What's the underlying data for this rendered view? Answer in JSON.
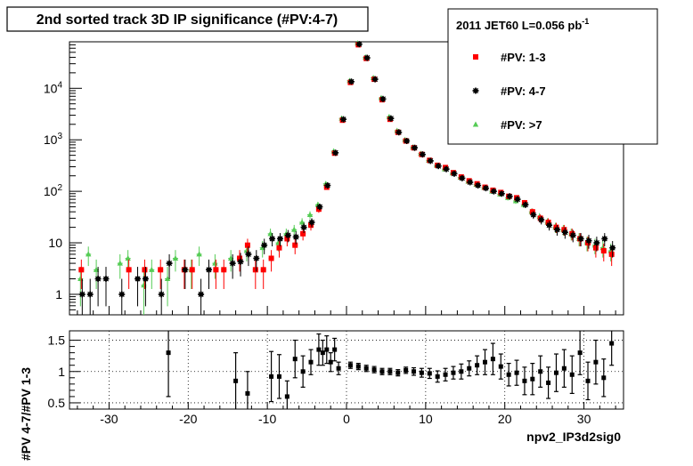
{
  "title": "2nd sorted track 3D IP significance (#PV:4-7)",
  "legend": {
    "header_main": "2011 JET60 L=0.056 pb",
    "header_sup": "-1",
    "entries": [
      {
        "label": "#PV: 1-3",
        "color": "#ff0000",
        "marker": "square"
      },
      {
        "label": "#PV: 4-7",
        "color": "#000000",
        "marker": "star"
      },
      {
        "label": "#PV: >7",
        "color": "#55cc55",
        "marker": "triangle"
      }
    ]
  },
  "xlabel": "npv2_IP3d2sig0",
  "ratio_ylabel": "#PV 4-7/#PV 1-3",
  "top_yticks": [
    {
      "value": 1,
      "label": "1"
    },
    {
      "value": 10,
      "label": "10"
    },
    {
      "value": 100,
      "label": "10",
      "sup": "2"
    },
    {
      "value": 1000,
      "label": "10",
      "sup": "3"
    },
    {
      "value": 10000,
      "label": "10",
      "sup": "4"
    }
  ],
  "bottom_yticks": [
    {
      "value": 0.5,
      "label": "0.5"
    },
    {
      "value": 1,
      "label": "1"
    },
    {
      "value": 1.5,
      "label": "1.5"
    }
  ],
  "xticks": [
    -30,
    -20,
    -10,
    0,
    10,
    20,
    30
  ],
  "chart_data": [
    {
      "type": "scatter",
      "title": "2nd sorted track 3D IP significance (#PV:4-7)",
      "xlabel": "",
      "ylabel": "",
      "xlim": [
        -35,
        35
      ],
      "ylim": [
        0.4,
        80000
      ],
      "yscale": "log",
      "grid": false,
      "legend_position": "top-right",
      "series": [
        {
          "name": "#PV: 1-3",
          "points": [
            [
              -33.5,
              3
            ],
            [
              -27.5,
              3
            ],
            [
              -25.5,
              3
            ],
            [
              -23.5,
              3
            ],
            [
              -20.5,
              3
            ],
            [
              -19.5,
              3
            ],
            [
              -16.5,
              3
            ],
            [
              -15.5,
              3
            ],
            [
              -13.5,
              5
            ],
            [
              -12.5,
              9
            ],
            [
              -11.5,
              3
            ],
            [
              -10.5,
              3
            ],
            [
              -9.5,
              5
            ],
            [
              -8.5,
              8
            ],
            [
              -7.5,
              12
            ],
            [
              -6.5,
              9
            ],
            [
              -5.5,
              15
            ],
            [
              -4.5,
              22
            ],
            [
              -3.5,
              45
            ],
            [
              -2.5,
              120
            ],
            [
              -1.5,
              550
            ],
            [
              -0.5,
              2400
            ],
            [
              0.5,
              13000
            ],
            [
              1.5,
              70000
            ],
            [
              2.5,
              38000
            ],
            [
              3.5,
              15000
            ],
            [
              4.5,
              6000
            ],
            [
              5.5,
              2500
            ],
            [
              6.5,
              1400
            ],
            [
              7.5,
              950
            ],
            [
              8.5,
              700
            ],
            [
              9.5,
              520
            ],
            [
              10.5,
              400
            ],
            [
              11.5,
              320
            ],
            [
              12.5,
              290
            ],
            [
              13.5,
              230
            ],
            [
              14.5,
              190
            ],
            [
              15.5,
              160
            ],
            [
              16.5,
              140
            ],
            [
              17.5,
              120
            ],
            [
              18.5,
              105
            ],
            [
              19.5,
              95
            ],
            [
              20.5,
              80
            ],
            [
              21.5,
              75
            ],
            [
              22.5,
              60
            ],
            [
              23.5,
              40
            ],
            [
              24.5,
              30
            ],
            [
              25.5,
              25
            ],
            [
              26.5,
              20
            ],
            [
              27.5,
              18
            ],
            [
              28.5,
              15
            ],
            [
              29.5,
              12
            ],
            [
              30.5,
              10
            ],
            [
              31.5,
              8
            ],
            [
              32.5,
              7
            ],
            [
              33.5,
              6
            ]
          ]
        },
        {
          "name": "#PV: 4-7",
          "points": [
            [
              -33.5,
              1.0
            ],
            [
              -32.5,
              1.0
            ],
            [
              -31.5,
              2.0
            ],
            [
              -30.5,
              2.0
            ],
            [
              -28.5,
              1.0
            ],
            [
              -26.5,
              2.0
            ],
            [
              -25.5,
              2.0
            ],
            [
              -23.5,
              1.0
            ],
            [
              -22.5,
              4.0
            ],
            [
              -20.5,
              3.0
            ],
            [
              -18.5,
              1.0
            ],
            [
              -17.5,
              3.0
            ],
            [
              -14.5,
              4.0
            ],
            [
              -13.5,
              4.3
            ],
            [
              -12.5,
              6.0
            ],
            [
              -11.5,
              5.0
            ],
            [
              -10.5,
              9.0
            ],
            [
              -9.5,
              12.0
            ],
            [
              -8.5,
              12.0
            ],
            [
              -7.5,
              14.0
            ],
            [
              -6.5,
              13.0
            ],
            [
              -5.5,
              20.0
            ],
            [
              -4.5,
              25.0
            ],
            [
              -3.5,
              50.0
            ],
            [
              -2.5,
              130.0
            ],
            [
              -1.5,
              560.0
            ],
            [
              -0.5,
              2500.0
            ],
            [
              0.5,
              13500.0
            ],
            [
              1.5,
              72000.0
            ],
            [
              2.5,
              39000.0
            ],
            [
              3.5,
              15000.0
            ],
            [
              4.5,
              6200.0
            ],
            [
              5.5,
              2600.0
            ],
            [
              6.5,
              1400.0
            ],
            [
              7.5,
              950.0
            ],
            [
              8.5,
              700.0
            ],
            [
              9.5,
              520.0
            ],
            [
              10.5,
              390.0
            ],
            [
              11.5,
              310.0
            ],
            [
              12.5,
              270.0
            ],
            [
              13.5,
              220.0
            ],
            [
              14.5,
              180.0
            ],
            [
              15.5,
              150.0
            ],
            [
              16.5,
              130.0
            ],
            [
              17.5,
              115.0
            ],
            [
              18.5,
              100.0
            ],
            [
              19.5,
              90.0
            ],
            [
              20.5,
              80.0
            ],
            [
              21.5,
              70.0
            ],
            [
              22.5,
              55.0
            ],
            [
              23.5,
              35.0
            ],
            [
              24.5,
              28.0
            ],
            [
              25.5,
              22.0
            ],
            [
              26.5,
              18.0
            ],
            [
              27.5,
              16.0
            ],
            [
              28.5,
              14.0
            ],
            [
              29.5,
              12.0
            ],
            [
              30.5,
              11.0
            ],
            [
              31.5,
              10.0
            ],
            [
              32.5,
              12.0
            ],
            [
              33.5,
              8.0
            ]
          ]
        },
        {
          "name": "#PV: >7",
          "points": [
            [
              -33.5,
              2.0
            ],
            [
              -32.5,
              6.0
            ],
            [
              -31.5,
              3.0
            ],
            [
              -28.5,
              4.0
            ],
            [
              -27.5,
              5.0
            ],
            [
              -25.5,
              1.5
            ],
            [
              -24.5,
              3.0
            ],
            [
              -22.5,
              2.0
            ],
            [
              -21.5,
              5.0
            ],
            [
              -19.5,
              3.0
            ],
            [
              -18.5,
              6.0
            ],
            [
              -16.5,
              4.0
            ],
            [
              -14.5,
              5.0
            ],
            [
              -12.5,
              7.0
            ],
            [
              -10.5,
              8.0
            ],
            [
              -9.5,
              15.0
            ],
            [
              -8.5,
              10.0
            ],
            [
              -7.5,
              15.0
            ],
            [
              -6.5,
              18.0
            ],
            [
              -5.5,
              25.0
            ],
            [
              -4.5,
              35.0
            ],
            [
              -3.5,
              55.0
            ],
            [
              -2.5,
              140.0
            ],
            [
              -1.5,
              600.0
            ],
            [
              -0.5,
              2600.0
            ],
            [
              0.5,
              14000.0
            ],
            [
              1.5,
              75000.0
            ],
            [
              2.5,
              40000.0
            ],
            [
              3.5,
              16000.0
            ],
            [
              4.5,
              6500.0
            ],
            [
              5.5,
              2800.0
            ],
            [
              6.5,
              1500.0
            ],
            [
              7.5,
              1000.0
            ],
            [
              8.5,
              720.0
            ],
            [
              9.5,
              540.0
            ],
            [
              10.5,
              400.0
            ],
            [
              11.5,
              320.0
            ],
            [
              12.5,
              270.0
            ],
            [
              13.5,
              225.0
            ],
            [
              14.5,
              185.0
            ],
            [
              15.5,
              155.0
            ],
            [
              16.5,
              135.0
            ],
            [
              17.5,
              118.0
            ],
            [
              18.5,
              100.0
            ],
            [
              19.5,
              88.0
            ],
            [
              20.5,
              75.0
            ],
            [
              21.5,
              65.0
            ],
            [
              22.5,
              55.0
            ],
            [
              23.5,
              40.0
            ],
            [
              24.5,
              32.0
            ],
            [
              25.5,
              25.0
            ],
            [
              26.5,
              20.0
            ],
            [
              27.5,
              18.0
            ],
            [
              28.5,
              15.0
            ],
            [
              29.5,
              12.0
            ],
            [
              30.5,
              10.0
            ],
            [
              31.5,
              9.0
            ],
            [
              32.5,
              8.0
            ],
            [
              33.5,
              7.0
            ]
          ]
        }
      ]
    },
    {
      "type": "scatter",
      "title": "",
      "xlabel": "npv2_IP3d2sig0",
      "ylabel": "#PV 4-7/#PV 1-3",
      "xlim": [
        -35,
        35
      ],
      "ylim": [
        0.4,
        1.65
      ],
      "grid": true,
      "series": [
        {
          "name": "",
          "points": [
            [
              -22.5,
              1.3,
              0.7
            ],
            [
              -14.0,
              0.85,
              0.45
            ],
            [
              -12.5,
              0.65,
              0.35
            ],
            [
              -9.5,
              0.92,
              0.4
            ],
            [
              -8.5,
              0.92,
              0.35
            ],
            [
              -7.5,
              0.6,
              0.25
            ],
            [
              -6.5,
              1.2,
              0.3
            ],
            [
              -5.5,
              1.0,
              0.25
            ],
            [
              -4.5,
              1.15,
              0.2
            ],
            [
              -3.5,
              1.35,
              0.25
            ],
            [
              -3.0,
              1.3,
              0.2
            ],
            [
              -2.5,
              1.35,
              0.22
            ],
            [
              -2.0,
              1.15,
              0.15
            ],
            [
              -1.5,
              1.35,
              0.18
            ],
            [
              -1.0,
              1.05,
              0.1
            ],
            [
              0.5,
              1.1,
              0.05
            ],
            [
              1.5,
              1.08,
              0.05
            ],
            [
              2.5,
              1.05,
              0.05
            ],
            [
              3.5,
              1.03,
              0.05
            ],
            [
              4.5,
              1.0,
              0.05
            ],
            [
              5.5,
              1.0,
              0.05
            ],
            [
              6.5,
              0.98,
              0.05
            ],
            [
              7.5,
              1.02,
              0.05
            ],
            [
              8.5,
              1.0,
              0.06
            ],
            [
              9.5,
              0.98,
              0.07
            ],
            [
              10.5,
              0.97,
              0.08
            ],
            [
              11.5,
              0.92,
              0.09
            ],
            [
              12.5,
              0.95,
              0.1
            ],
            [
              13.5,
              0.98,
              0.1
            ],
            [
              14.5,
              1.0,
              0.12
            ],
            [
              15.5,
              1.05,
              0.12
            ],
            [
              16.5,
              1.1,
              0.15
            ],
            [
              17.5,
              1.15,
              0.2
            ],
            [
              18.5,
              1.2,
              0.25
            ],
            [
              19.5,
              1.08,
              0.2
            ],
            [
              20.5,
              0.95,
              0.18
            ],
            [
              21.5,
              0.98,
              0.2
            ],
            [
              22.5,
              0.85,
              0.22
            ],
            [
              23.5,
              0.88,
              0.25
            ],
            [
              24.5,
              1.0,
              0.25
            ],
            [
              25.5,
              0.82,
              0.25
            ],
            [
              26.5,
              0.98,
              0.3
            ],
            [
              27.5,
              1.05,
              0.3
            ],
            [
              28.5,
              0.95,
              0.3
            ],
            [
              29.5,
              1.3,
              0.35
            ],
            [
              30.5,
              0.85,
              0.3
            ],
            [
              31.5,
              1.15,
              0.35
            ],
            [
              32.5,
              0.9,
              0.3
            ],
            [
              33.5,
              1.45,
              0.35
            ]
          ]
        }
      ]
    }
  ]
}
